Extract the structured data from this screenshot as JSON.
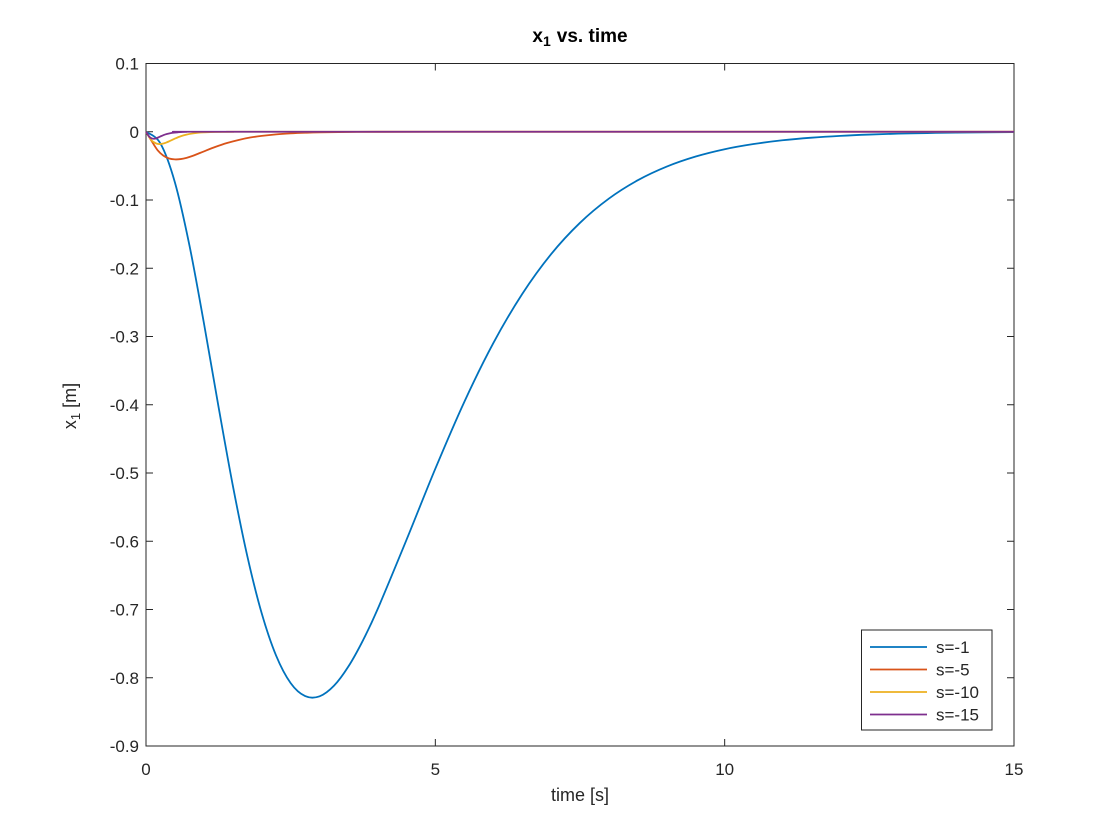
{
  "title": {
    "prefix": "x",
    "subscript": "1",
    "suffix": "vs. time"
  },
  "axes": {
    "xlabel": "time [s]",
    "ylabel": {
      "prefix": "x",
      "subscript": "1",
      "suffix": "[m]"
    },
    "xticks": [
      0,
      5,
      10,
      15
    ],
    "xtick_labels": [
      "0",
      "5",
      "10",
      "15"
    ],
    "yticks": [
      0.1,
      0,
      -0.1,
      -0.2,
      -0.3,
      -0.4,
      -0.5,
      -0.6,
      -0.7,
      -0.8,
      -0.9
    ],
    "ytick_labels": [
      "0.1",
      "0",
      "-0.1",
      "-0.2",
      "-0.3",
      "-0.4",
      "-0.5",
      "-0.6",
      "-0.7",
      "-0.8",
      "-0.9"
    ],
    "box_color": "#262626"
  },
  "chart_data": {
    "type": "line",
    "title": "x_1 vs. time",
    "xlabel": "time [s]",
    "ylabel": "x_1 [m]",
    "xlim": [
      0,
      15
    ],
    "ylim": [
      -0.9,
      0.1
    ],
    "grid": false,
    "legend_position": "lower right",
    "series": [
      {
        "name": "s=-1",
        "color": "#0072BD",
        "points": [
          [
            0,
            0
          ],
          [
            0.25,
            -0.0173
          ],
          [
            0.5,
            -0.0743
          ],
          [
            0.75,
            -0.1662
          ],
          [
            1,
            -0.28
          ],
          [
            1.25,
            -0.4014
          ],
          [
            1.5,
            -0.5182
          ],
          [
            1.75,
            -0.6215
          ],
          [
            2,
            -0.7057
          ],
          [
            2.25,
            -0.7679
          ],
          [
            2.5,
            -0.8079
          ],
          [
            2.75,
            -0.8269
          ],
          [
            3,
            -0.8272
          ],
          [
            3.25,
            -0.8116
          ],
          [
            3.5,
            -0.7832
          ],
          [
            3.75,
            -0.7451
          ],
          [
            4,
            -0.7
          ],
          [
            4.5,
            -0.5983
          ],
          [
            5,
            -0.4937
          ],
          [
            5.5,
            -0.3959
          ],
          [
            6,
            -0.31
          ],
          [
            6.5,
            -0.2379
          ],
          [
            7,
            -0.1794
          ],
          [
            7.5,
            -0.1334
          ],
          [
            8,
            -0.0979
          ],
          [
            8.5,
            -0.071
          ],
          [
            9,
            -0.051
          ],
          [
            9.5,
            -0.0363
          ],
          [
            10,
            -0.0256
          ],
          [
            10.5,
            -0.018
          ],
          [
            11,
            -0.0125
          ],
          [
            11.5,
            -0.0087
          ],
          [
            12,
            -0.006
          ],
          [
            12.5,
            -0.0041
          ],
          [
            13,
            -0.0028
          ],
          [
            13.5,
            -0.0019
          ],
          [
            14,
            -0.0013
          ],
          [
            15,
            -0.0006
          ]
        ]
      },
      {
        "name": "s=-5",
        "color": "#D95319",
        "points": [
          [
            0,
            0
          ],
          [
            0.1,
            -0.014
          ],
          [
            0.2,
            -0.027
          ],
          [
            0.3,
            -0.035
          ],
          [
            0.4,
            -0.0392
          ],
          [
            0.5,
            -0.0405
          ],
          [
            0.6,
            -0.04
          ],
          [
            0.7,
            -0.0382
          ],
          [
            0.8,
            -0.0355
          ],
          [
            0.9,
            -0.0322
          ],
          [
            1,
            -0.0288
          ],
          [
            1.2,
            -0.0222
          ],
          [
            1.4,
            -0.0165
          ],
          [
            1.6,
            -0.012
          ],
          [
            1.8,
            -0.0085
          ],
          [
            2,
            -0.006
          ],
          [
            2.25,
            -0.0038
          ],
          [
            2.5,
            -0.0024
          ],
          [
            2.75,
            -0.0015
          ],
          [
            3,
            -0.0009
          ],
          [
            3.5,
            -0.0003
          ],
          [
            4,
            -0.0001
          ],
          [
            5,
            0
          ],
          [
            10,
            0
          ],
          [
            15,
            0
          ]
        ]
      },
      {
        "name": "s=-10",
        "color": "#EDB120",
        "points": [
          [
            0,
            0
          ],
          [
            0.05,
            -0.007
          ],
          [
            0.1,
            -0.013
          ],
          [
            0.15,
            -0.016
          ],
          [
            0.2,
            -0.0178
          ],
          [
            0.25,
            -0.018
          ],
          [
            0.3,
            -0.0172
          ],
          [
            0.35,
            -0.0158
          ],
          [
            0.4,
            -0.014
          ],
          [
            0.45,
            -0.012
          ],
          [
            0.5,
            -0.01
          ],
          [
            0.6,
            -0.0066
          ],
          [
            0.7,
            -0.0042
          ],
          [
            0.8,
            -0.0026
          ],
          [
            0.9,
            -0.0015
          ],
          [
            1,
            -0.0009
          ],
          [
            1.2,
            -0.0003
          ],
          [
            1.5,
            -0.0001
          ],
          [
            2,
            0
          ],
          [
            8,
            0
          ],
          [
            15,
            0
          ]
        ]
      },
      {
        "name": "s=-15",
        "color": "#7E2F8E",
        "points": [
          [
            0,
            0
          ],
          [
            0.03,
            -0.004
          ],
          [
            0.06,
            -0.0075
          ],
          [
            0.1,
            -0.0098
          ],
          [
            0.13,
            -0.0103
          ],
          [
            0.16,
            -0.01
          ],
          [
            0.2,
            -0.0088
          ],
          [
            0.25,
            -0.0068
          ],
          [
            0.3,
            -0.005
          ],
          [
            0.36,
            -0.0033
          ],
          [
            0.45,
            -0.0017
          ],
          [
            0.55,
            -0.0008
          ],
          [
            0.7,
            -0.0002
          ],
          [
            1,
            0
          ],
          [
            7,
            0
          ],
          [
            15,
            0
          ]
        ]
      }
    ]
  },
  "legend": {
    "entries": [
      "s=-1",
      "s=-5",
      "s=-10",
      "s=-15"
    ]
  }
}
